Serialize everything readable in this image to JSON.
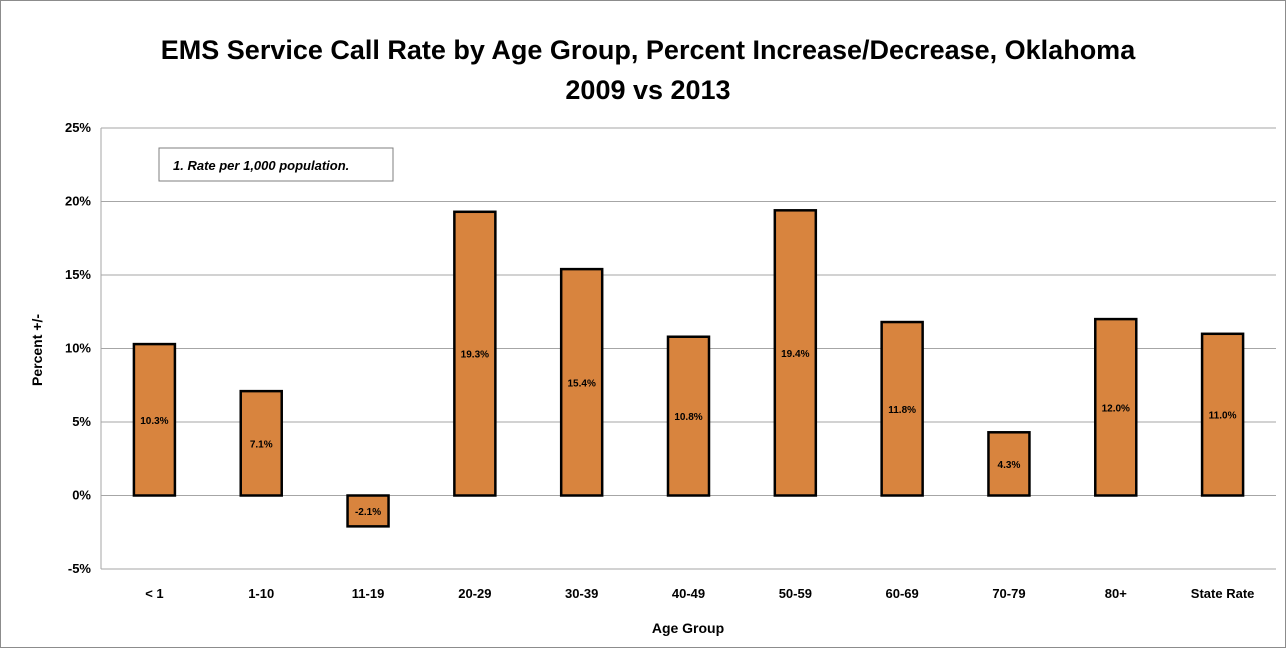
{
  "chart_data": {
    "type": "bar",
    "title_line1": "EMS Service Call Rate by Age Group, Percent Increase/Decrease, Oklahoma",
    "title_line2": "2009 vs 2013",
    "xlabel": "Age Group",
    "ylabel": "Percent +/-",
    "note": "1. Rate per 1,000 population.",
    "categories": [
      "< 1",
      "1-10",
      "11-19",
      "20-29",
      "30-39",
      "40-49",
      "50-59",
      "60-69",
      "70-79",
      "80+",
      "State Rate"
    ],
    "values": [
      10.3,
      7.1,
      -2.1,
      19.3,
      15.4,
      10.8,
      19.4,
      11.8,
      4.3,
      12.0,
      11.0
    ],
    "data_labels": [
      "10.3%",
      "7.1%",
      "-2.1%",
      "19.3%",
      "15.4%",
      "10.8%",
      "19.4%",
      "11.8%",
      "4.3%",
      "12.0%",
      "11.0%"
    ],
    "ylim": [
      -5,
      25
    ],
    "yticks": [
      -5,
      0,
      5,
      10,
      15,
      20,
      25
    ],
    "ytick_labels": [
      "-5%",
      "0%",
      "5%",
      "10%",
      "15%",
      "20%",
      "25%"
    ],
    "grid": true,
    "colors": {
      "bar_fill": "#d8843e",
      "bar_stroke": "#000000",
      "grid": "#a6a6a6"
    }
  }
}
